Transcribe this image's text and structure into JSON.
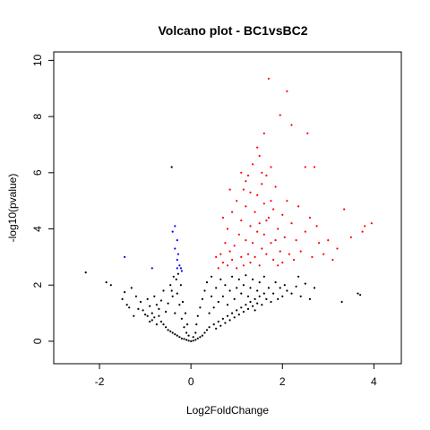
{
  "chart_data": {
    "type": "scatter",
    "title": "Volcano plot - BC1vsBC2",
    "xlabel": "Log2FoldChange",
    "ylabel": "-log10(pvalue)",
    "xlim": [
      -3.0,
      4.6
    ],
    "ylim": [
      -0.8,
      10.3
    ],
    "x_ticks": [
      -2,
      0,
      2,
      4
    ],
    "y_ticks": [
      0,
      2,
      4,
      6,
      8,
      10
    ],
    "grid": false,
    "legend": "none",
    "colors": {
      "not_significant": "#000000",
      "up": "#ff0000",
      "down": "#0000ff"
    },
    "series": [
      {
        "key": "not_significant",
        "points": [
          [
            -2.3,
            2.45
          ],
          [
            -1.85,
            2.1
          ],
          [
            -1.75,
            2.0
          ],
          [
            -1.5,
            1.5
          ],
          [
            -1.45,
            1.75
          ],
          [
            -1.35,
            1.2
          ],
          [
            -1.3,
            1.9
          ],
          [
            -1.2,
            1.6
          ],
          [
            -1.1,
            1.4
          ],
          [
            -1.05,
            1.1
          ],
          [
            -1.0,
            0.95
          ],
          [
            -0.95,
            1.5
          ],
          [
            -0.9,
            1.25
          ],
          [
            -0.85,
            1.0
          ],
          [
            -0.8,
            0.85
          ],
          [
            -0.8,
            1.6
          ],
          [
            -0.75,
            1.3
          ],
          [
            -0.7,
            0.9
          ],
          [
            -0.7,
            1.15
          ],
          [
            -0.65,
            0.7
          ],
          [
            -0.65,
            1.45
          ],
          [
            -0.6,
            0.6
          ],
          [
            -0.6,
            1.8
          ],
          [
            -0.55,
            0.5
          ],
          [
            -0.55,
            1.05
          ],
          [
            -0.5,
            0.4
          ],
          [
            -0.5,
            1.35
          ],
          [
            -0.45,
            0.35
          ],
          [
            -0.45,
            2.0
          ],
          [
            -0.4,
            0.3
          ],
          [
            -0.4,
            1.6
          ],
          [
            -0.38,
            2.3
          ],
          [
            -0.35,
            0.25
          ],
          [
            -0.35,
            1.0
          ],
          [
            -0.32,
            2.2
          ],
          [
            -0.3,
            0.2
          ],
          [
            -0.3,
            1.7
          ],
          [
            -0.28,
            2.4
          ],
          [
            -0.25,
            0.15
          ],
          [
            -0.25,
            1.3
          ],
          [
            -0.22,
            2.0
          ],
          [
            -0.2,
            0.1
          ],
          [
            -0.2,
            0.8
          ],
          [
            -0.18,
            1.4
          ],
          [
            -0.15,
            0.08
          ],
          [
            -0.15,
            0.5
          ],
          [
            -0.12,
            1.0
          ],
          [
            -0.1,
            0.05
          ],
          [
            -0.1,
            0.3
          ],
          [
            -0.08,
            0.6
          ],
          [
            -0.05,
            0.02
          ],
          [
            -0.05,
            0.2
          ],
          [
            0.0,
            0.0
          ],
          [
            0.05,
            0.02
          ],
          [
            0.05,
            0.15
          ],
          [
            0.1,
            0.05
          ],
          [
            0.1,
            0.3
          ],
          [
            0.12,
            0.6
          ],
          [
            0.15,
            0.1
          ],
          [
            0.15,
            0.9
          ],
          [
            0.2,
            0.15
          ],
          [
            0.2,
            1.2
          ],
          [
            0.25,
            0.2
          ],
          [
            0.25,
            1.5
          ],
          [
            0.3,
            0.3
          ],
          [
            0.3,
            1.8
          ],
          [
            0.35,
            0.4
          ],
          [
            0.35,
            2.1
          ],
          [
            0.4,
            0.5
          ],
          [
            0.4,
            1.0
          ],
          [
            0.45,
            1.6
          ],
          [
            0.45,
            2.3
          ],
          [
            0.5,
            0.6
          ],
          [
            0.5,
            1.2
          ],
          [
            0.55,
            1.9
          ],
          [
            0.6,
            0.7
          ],
          [
            0.6,
            1.4
          ],
          [
            0.65,
            2.2
          ],
          [
            0.7,
            0.8
          ],
          [
            0.7,
            1.6
          ],
          [
            0.75,
            2.0
          ],
          [
            0.8,
            0.9
          ],
          [
            0.8,
            1.3
          ],
          [
            0.85,
            1.8
          ],
          [
            0.9,
            1.0
          ],
          [
            0.9,
            2.3
          ],
          [
            0.95,
            1.5
          ],
          [
            1.0,
            1.1
          ],
          [
            1.0,
            1.9
          ],
          [
            1.05,
            2.2
          ],
          [
            1.1,
            1.2
          ],
          [
            1.1,
            1.7
          ],
          [
            1.15,
            2.0
          ],
          [
            1.2,
            1.3
          ],
          [
            1.2,
            2.35
          ],
          [
            1.25,
            1.6
          ],
          [
            1.3,
            1.4
          ],
          [
            1.3,
            1.9
          ],
          [
            1.35,
            2.2
          ],
          [
            1.4,
            1.5
          ],
          [
            1.4,
            1.1
          ],
          [
            1.45,
            1.8
          ],
          [
            1.5,
            1.6
          ],
          [
            1.5,
            2.1
          ],
          [
            1.55,
            1.3
          ],
          [
            1.6,
            1.7
          ],
          [
            1.6,
            2.3
          ],
          [
            1.65,
            1.5
          ],
          [
            1.7,
            1.9
          ],
          [
            1.75,
            1.4
          ],
          [
            1.8,
            1.7
          ],
          [
            1.85,
            2.1
          ],
          [
            1.9,
            1.5
          ],
          [
            1.95,
            1.9
          ],
          [
            2.0,
            1.6
          ],
          [
            2.05,
            2.0
          ],
          [
            2.1,
            1.8
          ],
          [
            2.2,
            1.7
          ],
          [
            2.3,
            1.95
          ],
          [
            2.4,
            1.6
          ],
          [
            2.5,
            2.05
          ],
          [
            2.6,
            1.5
          ],
          [
            2.35,
            2.3
          ],
          [
            2.7,
            1.9
          ],
          [
            3.3,
            1.4
          ],
          [
            3.65,
            1.7
          ],
          [
            3.7,
            1.65
          ],
          [
            -1.4,
            1.3
          ],
          [
            -1.25,
            0.9
          ],
          [
            -0.9,
            0.7
          ],
          [
            0.55,
            0.45
          ],
          [
            0.65,
            0.55
          ],
          [
            0.75,
            0.65
          ],
          [
            0.85,
            0.75
          ],
          [
            0.95,
            0.85
          ],
          [
            1.05,
            0.95
          ],
          [
            1.15,
            1.05
          ],
          [
            1.25,
            1.15
          ],
          [
            1.35,
            1.25
          ],
          [
            1.45,
            1.35
          ],
          [
            -0.75,
            0.6
          ],
          [
            -0.85,
            0.75
          ],
          [
            -0.95,
            0.9
          ],
          [
            -1.15,
            1.15
          ],
          [
            -0.42,
            1.8
          ]
        ]
      },
      {
        "key": "up",
        "points": [
          [
            0.6,
            2.6
          ],
          [
            0.65,
            3.1
          ],
          [
            0.7,
            2.8
          ],
          [
            0.75,
            3.5
          ],
          [
            0.8,
            2.7
          ],
          [
            0.8,
            4.0
          ],
          [
            0.85,
            3.2
          ],
          [
            0.9,
            2.9
          ],
          [
            0.9,
            4.6
          ],
          [
            0.95,
            3.4
          ],
          [
            1.0,
            2.6
          ],
          [
            1.0,
            5.0
          ],
          [
            1.05,
            3.8
          ],
          [
            1.1,
            3.0
          ],
          [
            1.1,
            4.3
          ],
          [
            1.15,
            2.7
          ],
          [
            1.15,
            5.4
          ],
          [
            1.2,
            3.6
          ],
          [
            1.2,
            4.8
          ],
          [
            1.25,
            3.1
          ],
          [
            1.25,
            5.9
          ],
          [
            1.3,
            4.1
          ],
          [
            1.3,
            2.8
          ],
          [
            1.35,
            3.5
          ],
          [
            1.35,
            6.3
          ],
          [
            1.4,
            3.0
          ],
          [
            1.4,
            4.6
          ],
          [
            1.45,
            3.9
          ],
          [
            1.45,
            5.2
          ],
          [
            1.5,
            2.7
          ],
          [
            1.5,
            4.2
          ],
          [
            1.5,
            6.6
          ],
          [
            1.55,
            3.3
          ],
          [
            1.55,
            5.6
          ],
          [
            1.6,
            3.8
          ],
          [
            1.6,
            4.9
          ],
          [
            1.6,
            7.4
          ],
          [
            1.65,
            3.1
          ],
          [
            1.65,
            5.9
          ],
          [
            1.7,
            4.4
          ],
          [
            1.7,
            9.35
          ],
          [
            1.75,
            3.5
          ],
          [
            1.75,
            6.2
          ],
          [
            1.8,
            2.9
          ],
          [
            1.8,
            4.7
          ],
          [
            1.85,
            3.6
          ],
          [
            1.85,
            5.5
          ],
          [
            1.9,
            2.7
          ],
          [
            1.9,
            4.0
          ],
          [
            1.95,
            3.2
          ],
          [
            1.95,
            8.05
          ],
          [
            2.0,
            4.5
          ],
          [
            2.0,
            2.8
          ],
          [
            2.05,
            3.7
          ],
          [
            2.1,
            8.9
          ],
          [
            2.1,
            5.0
          ],
          [
            2.15,
            3.1
          ],
          [
            2.2,
            4.2
          ],
          [
            2.2,
            7.7
          ],
          [
            2.25,
            2.9
          ],
          [
            2.3,
            3.6
          ],
          [
            2.35,
            4.8
          ],
          [
            2.4,
            3.2
          ],
          [
            2.5,
            6.2
          ],
          [
            2.5,
            3.9
          ],
          [
            2.55,
            7.4
          ],
          [
            2.6,
            4.4
          ],
          [
            2.65,
            3.0
          ],
          [
            2.7,
            6.2
          ],
          [
            2.75,
            4.1
          ],
          [
            2.8,
            3.5
          ],
          [
            2.9,
            3.1
          ],
          [
            3.0,
            3.6
          ],
          [
            3.1,
            2.9
          ],
          [
            3.2,
            3.3
          ],
          [
            3.35,
            4.7
          ],
          [
            3.5,
            3.7
          ],
          [
            3.75,
            3.9
          ],
          [
            3.8,
            4.1
          ],
          [
            3.95,
            4.2
          ],
          [
            0.55,
            3.0
          ],
          [
            0.7,
            4.4
          ],
          [
            0.85,
            5.4
          ],
          [
            1.1,
            6.0
          ],
          [
            1.2,
            5.7
          ],
          [
            1.3,
            5.3
          ],
          [
            1.45,
            6.9
          ],
          [
            1.55,
            6.0
          ],
          [
            1.65,
            4.3
          ],
          [
            1.75,
            5.0
          ]
        ]
      },
      {
        "key": "down",
        "points": [
          [
            -0.4,
            3.9
          ],
          [
            -0.35,
            4.1
          ],
          [
            -0.35,
            3.3
          ],
          [
            -0.3,
            3.6
          ],
          [
            -0.3,
            2.9
          ],
          [
            -0.28,
            3.1
          ],
          [
            -0.25,
            2.7
          ],
          [
            -0.22,
            2.6
          ],
          [
            -0.2,
            2.5
          ],
          [
            -0.3,
            2.6
          ],
          [
            -0.85,
            2.6
          ],
          [
            -1.45,
            3.0
          ]
        ]
      },
      {
        "key": "not_significant",
        "points": [
          [
            -0.42,
            6.2
          ]
        ]
      }
    ]
  }
}
